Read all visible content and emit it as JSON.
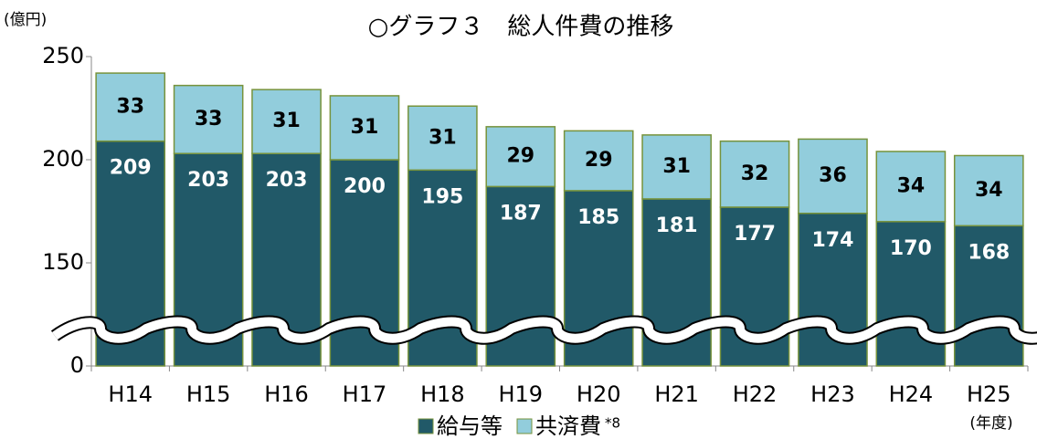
{
  "chart_data": {
    "type": "stacked_bar",
    "title": "○グラフ３　総人件費の推移",
    "y_unit_label": "(億円)",
    "x_unit_label": "(年度)",
    "categories": [
      "H14",
      "H15",
      "H16",
      "H17",
      "H18",
      "H19",
      "H20",
      "H21",
      "H22",
      "H23",
      "H24",
      "H25"
    ],
    "series": [
      {
        "name": "給与等",
        "color": "#215968",
        "values": [
          209,
          203,
          203,
          200,
          195,
          187,
          185,
          181,
          177,
          174,
          170,
          168
        ]
      },
      {
        "name": "共済費",
        "color": "#92cddc",
        "values": [
          33,
          33,
          31,
          31,
          31,
          29,
          29,
          31,
          32,
          36,
          34,
          34
        ]
      }
    ],
    "legend_note": "*8",
    "bar_edge_color": "#77933c",
    "ylim": [
      0,
      250
    ],
    "yticks": [
      0,
      150,
      200,
      250
    ],
    "axis_break": [
      0,
      100
    ]
  }
}
